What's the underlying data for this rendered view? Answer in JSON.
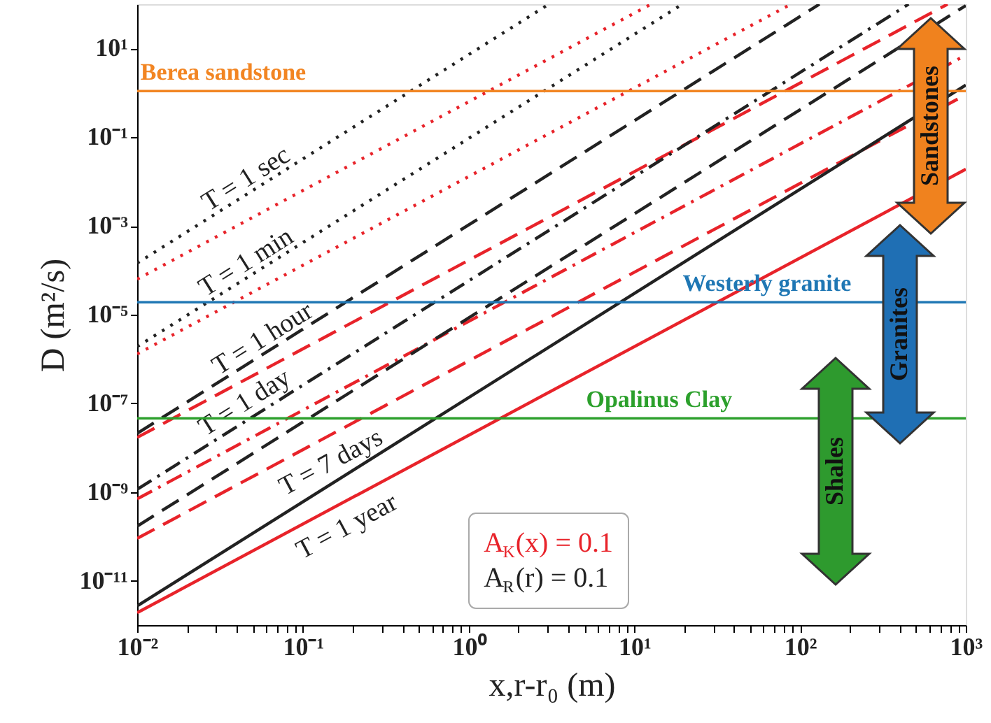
{
  "chart_data": {
    "type": "line",
    "xlabel": "x,r-r₀  (m)",
    "ylabel": "D (m²/s)",
    "log": "xy",
    "grid": false,
    "xlim": [
      0.01,
      1000
    ],
    "ylim": [
      1e-12,
      100
    ],
    "xticks": [
      {
        "value": 0.01,
        "label": "10⁻²"
      },
      {
        "value": 0.02,
        "label": null
      },
      {
        "value": 0.03,
        "label": null
      },
      {
        "value": 0.04,
        "label": null
      },
      {
        "value": 0.05,
        "label": null
      },
      {
        "value": 0.06,
        "label": null
      },
      {
        "value": 0.07,
        "label": null
      },
      {
        "value": 0.08,
        "label": null
      },
      {
        "value": 0.09,
        "label": null
      },
      {
        "value": 0.1,
        "label": "10⁻¹"
      },
      {
        "value": 0.2,
        "label": null
      },
      {
        "value": 0.3,
        "label": null
      },
      {
        "value": 0.4,
        "label": null
      },
      {
        "value": 0.5,
        "label": null
      },
      {
        "value": 0.6,
        "label": null
      },
      {
        "value": 0.7,
        "label": null
      },
      {
        "value": 0.8,
        "label": null
      },
      {
        "value": 0.9,
        "label": null
      },
      {
        "value": 1,
        "label": "10⁰"
      },
      {
        "value": 2,
        "label": null
      },
      {
        "value": 3,
        "label": null
      },
      {
        "value": 4,
        "label": null
      },
      {
        "value": 5,
        "label": null
      },
      {
        "value": 6,
        "label": null
      },
      {
        "value": 7,
        "label": null
      },
      {
        "value": 8,
        "label": null
      },
      {
        "value": 9,
        "label": null
      },
      {
        "value": 10,
        "label": "10¹"
      },
      {
        "value": 20,
        "label": null
      },
      {
        "value": 30,
        "label": null
      },
      {
        "value": 40,
        "label": null
      },
      {
        "value": 50,
        "label": null
      },
      {
        "value": 60,
        "label": null
      },
      {
        "value": 70,
        "label": null
      },
      {
        "value": 80,
        "label": null
      },
      {
        "value": 90,
        "label": null
      },
      {
        "value": 100,
        "label": "10²"
      },
      {
        "value": 200,
        "label": null
      },
      {
        "value": 300,
        "label": null
      },
      {
        "value": 400,
        "label": null
      },
      {
        "value": 500,
        "label": null
      },
      {
        "value": 600,
        "label": null
      },
      {
        "value": 700,
        "label": null
      },
      {
        "value": 800,
        "label": null
      },
      {
        "value": 900,
        "label": null
      },
      {
        "value": 1000,
        "label": "10³"
      }
    ],
    "yticks": [
      {
        "value": 1e-11,
        "label": "10⁻¹¹"
      },
      {
        "value": 1e-09,
        "label": "10⁻⁹"
      },
      {
        "value": 1e-07,
        "label": "10⁻⁷"
      },
      {
        "value": 1e-05,
        "label": "10⁻⁵"
      },
      {
        "value": 0.001,
        "label": "10⁻³"
      },
      {
        "value": 0.1,
        "label": "10⁻¹"
      },
      {
        "value": 10,
        "label": "10¹"
      }
    ],
    "series": [
      {
        "name": "T = 1 sec",
        "color": "#222222",
        "line_style": "dotted",
        "x": [
          0.01,
          3.05
        ],
        "values": [
          0.000145,
          100
        ]
      },
      {
        "color": "#e8232a",
        "line_style": "dotted",
        "x": [
          0.01,
          12.6
        ],
        "values": [
          6.3e-05,
          100
        ]
      },
      {
        "name": "T = 1 min",
        "color": "#222222",
        "line_style": "dotted",
        "x": [
          0.01,
          19.5
        ],
        "values": [
          1.9e-06,
          100
        ]
      },
      {
        "color": "#e8232a",
        "line_style": "dotted",
        "x": [
          0.01,
          88
        ],
        "values": [
          1.3e-06,
          100
        ]
      },
      {
        "name": "T = 1 hour",
        "color": "#222222",
        "line_style": "dashed",
        "x": [
          0.01,
          131
        ],
        "values": [
          2.1e-08,
          100
        ]
      },
      {
        "color": "#e8232a",
        "line_style": "dashed",
        "x": [
          0.01,
          776
        ],
        "values": [
          1.7e-08,
          100
        ]
      },
      {
        "name": "T = 1 day",
        "color": "#222222",
        "line_style": "dashdot",
        "x": [
          0.01,
          452
        ],
        "values": [
          1.15e-09,
          100
        ]
      },
      {
        "color": "#e8232a",
        "line_style": "dashdot",
        "x": [
          0.01,
          1000
        ],
        "values": [
          7e-10,
          7.1
        ]
      },
      {
        "color": "#222222",
        "line_style": "dashed",
        "x": [
          0.01,
          1000
        ],
        "values": [
          1.7e-10,
          93
        ]
      },
      {
        "name": "T = 7 days",
        "color": "#e8232a",
        "line_style": "dashed",
        "x": [
          0.01,
          1000
        ],
        "values": [
          9e-11,
          0.91
        ]
      },
      {
        "color": "#222222",
        "line_style": "solid",
        "x": [
          0.01,
          1000
        ],
        "values": [
          2.7e-12,
          1.5
        ]
      },
      {
        "name": "T = 1 year",
        "color": "#e8232a",
        "line_style": "solid",
        "x": [
          0.01,
          1000
        ],
        "values": [
          1.9e-12,
          0.019
        ]
      }
    ],
    "ref_lines": [
      {
        "axis": "y",
        "value": 1.1,
        "label": "Berea sandstone",
        "color": "#f28522"
      },
      {
        "axis": "y",
        "value": 1.9e-05,
        "label": "Westerly granite",
        "color": "#1f77b4"
      },
      {
        "axis": "y",
        "value": 4.6e-08,
        "label": "Opalinus Clay",
        "color": "#2ca02c"
      }
    ],
    "annotations": [
      "Sandstones",
      "Granites",
      "Shales",
      "A$_{K}$(x) = 0.1",
      "A$_{R}$(r) = 0.1"
    ]
  }
}
